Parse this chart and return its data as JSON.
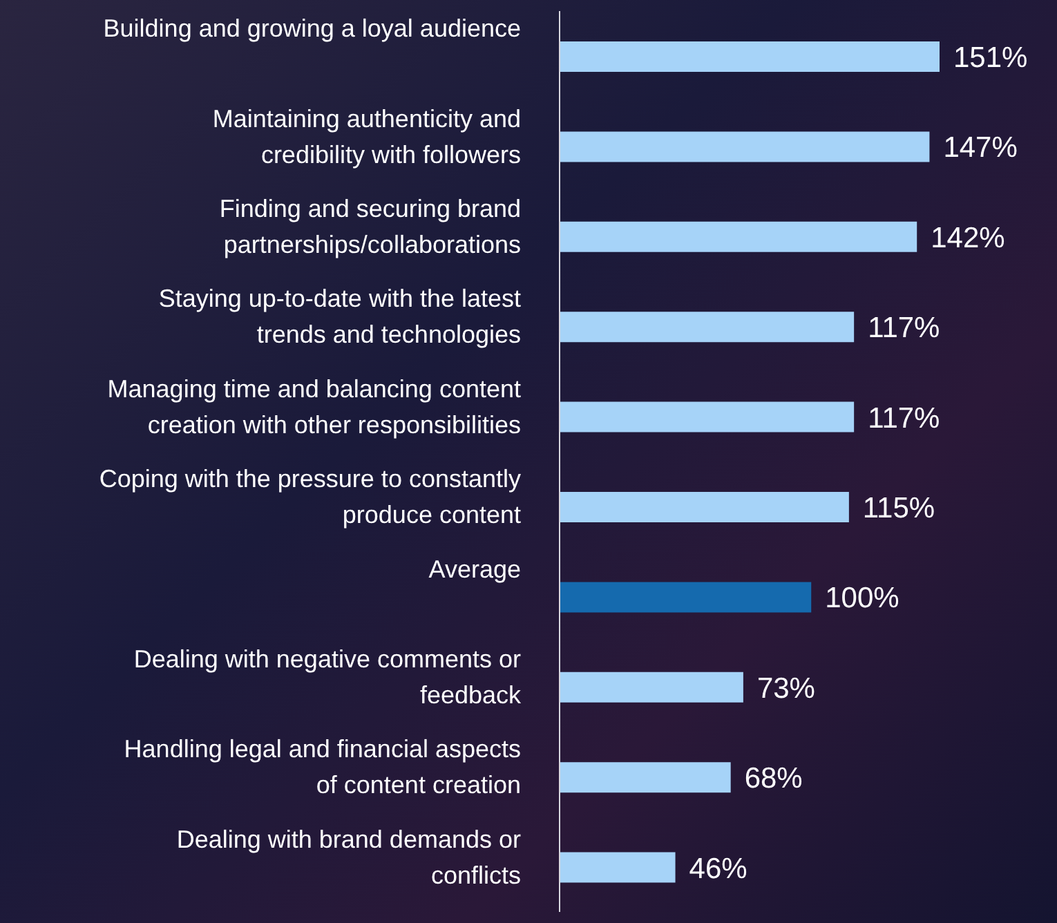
{
  "chart_data": {
    "type": "bar",
    "orientation": "horizontal",
    "value_labels": [
      "151%",
      "147%",
      "142%",
      "117%",
      "117%",
      "115%",
      "100%",
      "73%",
      "68%",
      "46%"
    ],
    "categories": [
      "Building and growing a loyal audience",
      "Maintaining authenticity and credibility with followers",
      "Finding and securing brand partnerships/collaborations",
      "Staying up-to-date with the latest trends and technologies",
      "Managing time and balancing content creation with other responsibilities",
      "Coping with the pressure to constantly produce content",
      "Average",
      "Dealing with negative comments or feedback",
      "Handling legal and financial aspects of content creation",
      "Dealing with brand demands or conflicts"
    ],
    "values": [
      151,
      147,
      142,
      117,
      117,
      115,
      100,
      73,
      68,
      46
    ],
    "colors": [
      "#a6d3f8",
      "#a6d3f8",
      "#a6d3f8",
      "#a6d3f8",
      "#a6d3f8",
      "#a6d3f8",
      "#156aae",
      "#a6d3f8",
      "#a6d3f8",
      "#a6d3f8"
    ]
  }
}
